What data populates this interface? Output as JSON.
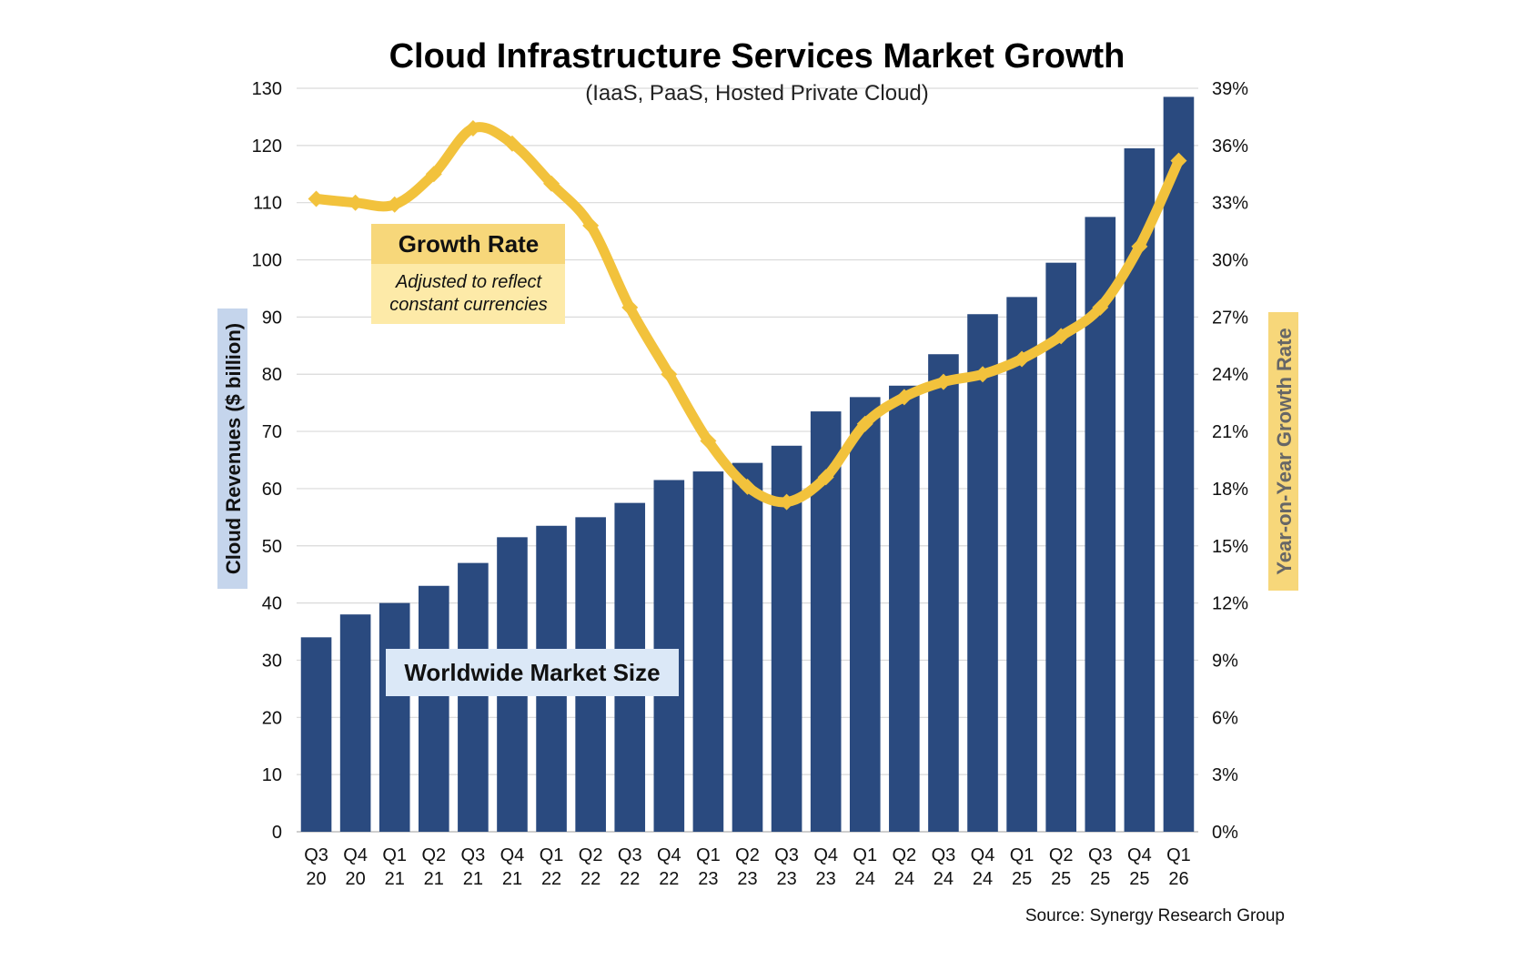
{
  "chart_data": {
    "type": "bar",
    "title": "Cloud Infrastructure Services Market Growth",
    "subtitle": "(IaaS, PaaS, Hosted Private Cloud)",
    "ylabel": "Cloud Revenues ($ billion)",
    "y2label": "Year-on-Year Growth Rate",
    "ylim": [
      0,
      130
    ],
    "y2lim": [
      0,
      39
    ],
    "yticks": [
      "0",
      "10",
      "20",
      "30",
      "40",
      "50",
      "60",
      "70",
      "80",
      "90",
      "100",
      "110",
      "120",
      "130"
    ],
    "y2ticks": [
      "0%",
      "3%",
      "6%",
      "9%",
      "12%",
      "15%",
      "18%",
      "21%",
      "24%",
      "27%",
      "30%",
      "33%",
      "36%",
      "39%"
    ],
    "categories": [
      [
        "Q3",
        "20"
      ],
      [
        "Q4",
        "20"
      ],
      [
        "Q1",
        "21"
      ],
      [
        "Q2",
        "21"
      ],
      [
        "Q3",
        "21"
      ],
      [
        "Q4",
        "21"
      ],
      [
        "Q1",
        "22"
      ],
      [
        "Q2",
        "22"
      ],
      [
        "Q3",
        "22"
      ],
      [
        "Q4",
        "22"
      ],
      [
        "Q1",
        "23"
      ],
      [
        "Q2",
        "23"
      ],
      [
        "Q3",
        "23"
      ],
      [
        "Q4",
        "23"
      ],
      [
        "Q1",
        "24"
      ],
      [
        "Q2",
        "24"
      ],
      [
        "Q3",
        "24"
      ],
      [
        "Q4",
        "24"
      ],
      [
        "Q1",
        "25"
      ],
      [
        "Q2",
        "25"
      ],
      [
        "Q3",
        "25"
      ],
      [
        "Q4",
        "25"
      ],
      [
        "Q1",
        "26"
      ]
    ],
    "series": [
      {
        "name": "Worldwide Market Size",
        "type": "bar",
        "axis": "left",
        "color": "#2a4a7f",
        "values": [
          34,
          38,
          40,
          43,
          47,
          51.5,
          53.5,
          55,
          57.5,
          61.5,
          63,
          64.5,
          67.5,
          73.5,
          76,
          78,
          83.5,
          90.5,
          93.5,
          99.5,
          107.5,
          119.5,
          128.5
        ]
      },
      {
        "name": "Growth Rate",
        "type": "line",
        "axis": "right",
        "color": "#f2c23c",
        "values": [
          33.2,
          33.0,
          32.9,
          34.5,
          36.9,
          36.1,
          34.0,
          31.8,
          27.5,
          24.0,
          20.5,
          18.1,
          17.3,
          18.6,
          21.4,
          22.8,
          23.6,
          24.0,
          24.8,
          26.0,
          27.5,
          30.7,
          35.2
        ]
      }
    ],
    "annotations": {
      "growth_box": {
        "title": "Growth Rate",
        "note_line1": "Adjusted to reflect",
        "note_line2": "constant currencies"
      },
      "market_box": {
        "title": "Worldwide Market Size"
      }
    },
    "source": "Source: Synergy Research Group",
    "colors": {
      "bar": "#2a4a7f",
      "line": "#f2c23c",
      "gridline": "#d9d9d9",
      "growth_box_title_bg": "#f7d77a",
      "growth_box_note_bg": "#fdeaa8",
      "market_box_bg": "#dbe8f7",
      "left_axis_title_bg": "#c5d5ec",
      "right_axis_title_bg": "#f7d77a"
    },
    "grid": true,
    "legend": "none"
  }
}
